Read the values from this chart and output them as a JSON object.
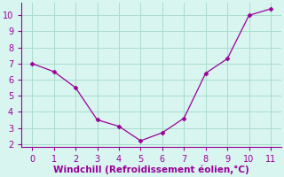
{
  "x": [
    0,
    1,
    2,
    3,
    4,
    5,
    6,
    7,
    8,
    9,
    10,
    11
  ],
  "y": [
    7.0,
    6.5,
    5.5,
    3.5,
    3.1,
    2.2,
    2.7,
    3.6,
    6.4,
    7.3,
    10.0,
    10.4
  ],
  "line_color": "#990099",
  "marker": "D",
  "marker_size": 2.5,
  "bg_color": "#d8f5f0",
  "grid_color": "#aaddcc",
  "xlabel": "Windchill (Refroidissement éolien,°C)",
  "xlabel_color": "#990099",
  "xlabel_fontsize": 7.5,
  "tick_color": "#990099",
  "tick_fontsize": 7,
  "ylim": [
    1.8,
    10.8
  ],
  "xlim": [
    -0.5,
    11.5
  ],
  "yticks": [
    2,
    3,
    4,
    5,
    6,
    7,
    8,
    9,
    10
  ],
  "xticks": [
    0,
    1,
    2,
    3,
    4,
    5,
    6,
    7,
    8,
    9,
    10,
    11
  ],
  "spine_color": "#990099"
}
